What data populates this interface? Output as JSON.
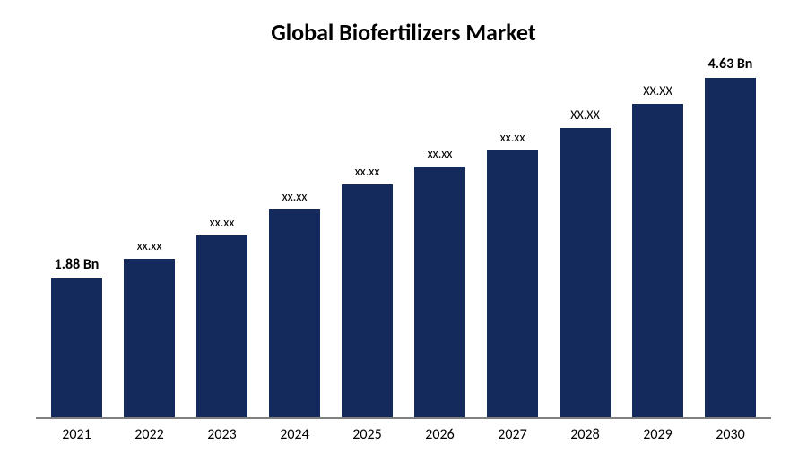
{
  "chart": {
    "type": "bar",
    "title": "Global Biofertilizers Market",
    "title_fontsize": 26,
    "title_fontweight": 700,
    "title_color": "#000000",
    "background_color": "#ffffff",
    "axis_line_color": "#808080",
    "bar_color": "#152a5c",
    "bar_width_ratio": 0.7,
    "y_max": 4.9,
    "label_fontsize": 16,
    "label_small_fontsize": 14,
    "xaxis_fontsize": 16,
    "categories": [
      "2021",
      "2022",
      "2023",
      "2024",
      "2025",
      "2026",
      "2027",
      "2028",
      "2029",
      "2030"
    ],
    "values": [
      1.88,
      2.15,
      2.46,
      2.82,
      3.15,
      3.4,
      3.62,
      3.92,
      4.25,
      4.63
    ],
    "value_labels": [
      "1.88 Bn",
      "xx.xx",
      "xx.xx",
      "xx.xx",
      "xx.xx",
      "xx.xx",
      "xx.xx",
      "xx.xx",
      "xx.xx",
      "4.63 Bn"
    ],
    "label_bold_flags": [
      true,
      false,
      false,
      false,
      false,
      false,
      false,
      false,
      false,
      true
    ],
    "label_caps_flags": [
      true,
      false,
      false,
      false,
      false,
      false,
      false,
      true,
      true,
      true
    ]
  }
}
